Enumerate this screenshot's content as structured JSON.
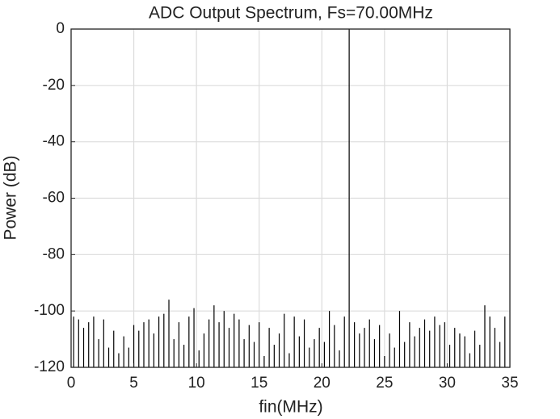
{
  "chart_data": {
    "type": "stem",
    "title": "ADC Output Spectrum, Fs=70.00MHz",
    "xlabel": "fin(MHz)",
    "ylabel": "Power (dB)",
    "color": "#000000",
    "grid": true,
    "xlim": [
      0,
      35
    ],
    "xticks": [
      0,
      5,
      10,
      15,
      20,
      25,
      30,
      35
    ],
    "ylim": [
      -120,
      0
    ],
    "yticks": [
      -120,
      -100,
      -80,
      -60,
      -40,
      -20,
      0
    ],
    "x": [
      0.2,
      0.6,
      1.0,
      1.4,
      1.8,
      2.2,
      2.6,
      3.0,
      3.4,
      3.8,
      4.2,
      4.6,
      5.0,
      5.4,
      5.8,
      6.2,
      6.6,
      7.0,
      7.4,
      7.8,
      8.2,
      8.6,
      9.0,
      9.4,
      9.8,
      10.2,
      10.6,
      11.0,
      11.4,
      11.8,
      12.2,
      12.6,
      13.0,
      13.4,
      13.8,
      14.2,
      14.6,
      15.0,
      15.4,
      15.8,
      16.2,
      16.6,
      17.0,
      17.4,
      17.8,
      18.2,
      18.6,
      19.0,
      19.4,
      19.8,
      20.2,
      20.6,
      21.0,
      21.4,
      21.8,
      22.18,
      22.6,
      23.0,
      23.4,
      23.8,
      24.2,
      24.6,
      25.0,
      25.4,
      25.8,
      26.2,
      26.6,
      27.0,
      27.4,
      27.8,
      28.2,
      28.6,
      29.0,
      29.4,
      29.8,
      30.2,
      30.6,
      31.0,
      31.4,
      31.8,
      32.2,
      32.6,
      33.0,
      33.4,
      33.8,
      34.2,
      34.6
    ],
    "values": [
      -102,
      -103,
      -106,
      -104,
      -102,
      -110,
      -103,
      -113,
      -107,
      -115,
      -109,
      -113,
      -105,
      -107,
      -104,
      -103,
      -108,
      -102,
      -101,
      -96,
      -110,
      -104,
      -112,
      -102,
      -99,
      -114,
      -108,
      -103,
      -98,
      -104,
      -100,
      -106,
      -101,
      -103,
      -110,
      -105,
      -111,
      -104,
      -116,
      -106,
      -112,
      -108,
      -101,
      -115,
      -102,
      -109,
      -103,
      -113,
      -110,
      -106,
      -111,
      -100,
      -105,
      -114,
      -102,
      0,
      -104,
      -108,
      -106,
      -103,
      -110,
      -105,
      -116,
      -108,
      -113,
      -100,
      -111,
      -104,
      -109,
      -106,
      -103,
      -107,
      -102,
      -105,
      -104,
      -112,
      -106,
      -108,
      -109,
      -115,
      -107,
      -112,
      -98,
      -102,
      -106,
      -111,
      -102
    ]
  }
}
